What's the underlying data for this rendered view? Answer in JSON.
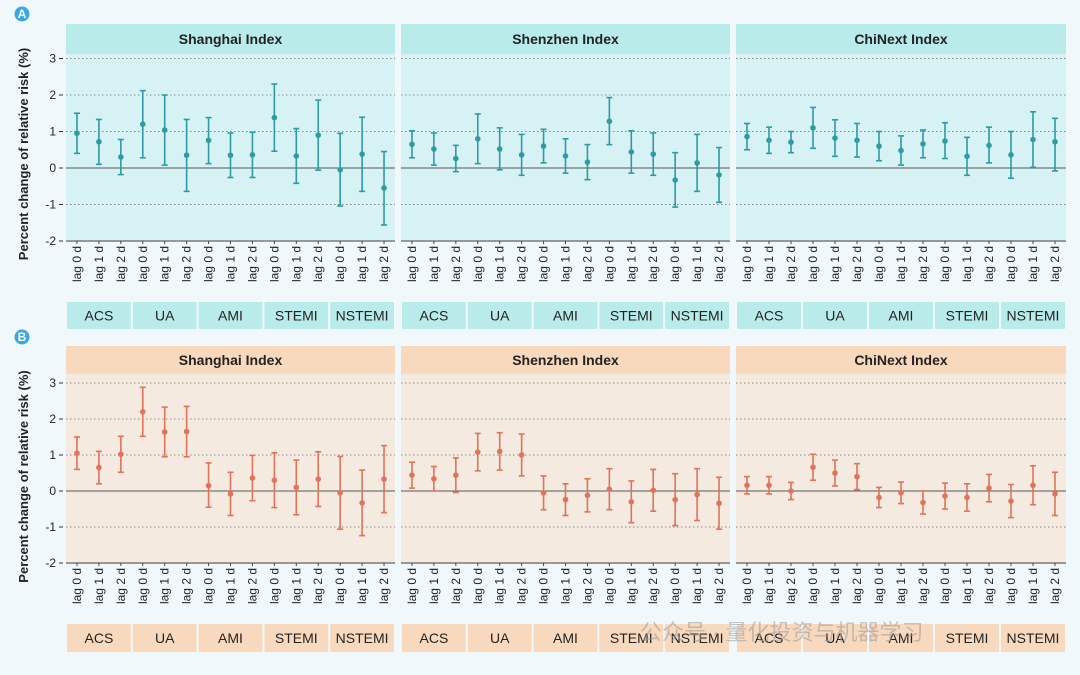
{
  "chart_data": [
    {
      "type": "errorbar",
      "label": "A",
      "ylabel": "Percent change of relative risk (%)",
      "ylim": [
        -2,
        3
      ],
      "yticks": [
        -2,
        -1,
        0,
        1,
        2,
        3
      ],
      "color": "#2e9aa3",
      "panel_bg": "#b9ebea",
      "panels": [
        {
          "title": "Shanghai Index",
          "groups": [
            "ACS",
            "UA",
            "AMI",
            "STEMI",
            "NSTEMI"
          ],
          "lags": [
            "lag 0 d",
            "lag 1 d",
            "lag 2 d"
          ],
          "points": [
            {
              "est": 0.95,
              "lo": 0.4,
              "hi": 1.5
            },
            {
              "est": 0.72,
              "lo": 0.1,
              "hi": 1.33
            },
            {
              "est": 0.3,
              "lo": -0.18,
              "hi": 0.78
            },
            {
              "est": 1.2,
              "lo": 0.28,
              "hi": 2.12
            },
            {
              "est": 1.04,
              "lo": 0.08,
              "hi": 2.0
            },
            {
              "est": 0.35,
              "lo": -0.64,
              "hi": 1.33
            },
            {
              "est": 0.76,
              "lo": 0.12,
              "hi": 1.38
            },
            {
              "est": 0.35,
              "lo": -0.26,
              "hi": 0.96
            },
            {
              "est": 0.36,
              "lo": -0.26,
              "hi": 0.98
            },
            {
              "est": 1.38,
              "lo": 0.46,
              "hi": 2.3
            },
            {
              "est": 0.33,
              "lo": -0.42,
              "hi": 1.08
            },
            {
              "est": 0.9,
              "lo": -0.06,
              "hi": 1.86
            },
            {
              "est": -0.05,
              "lo": -1.04,
              "hi": 0.95
            },
            {
              "est": 0.38,
              "lo": -0.64,
              "hi": 1.39
            },
            {
              "est": -0.55,
              "lo": -1.56,
              "hi": 0.45
            }
          ]
        },
        {
          "title": "Shenzhen Index",
          "groups": [
            "ACS",
            "UA",
            "AMI",
            "STEMI",
            "NSTEMI"
          ],
          "lags": [
            "lag 0 d",
            "lag 1 d",
            "lag 2 d"
          ],
          "points": [
            {
              "est": 0.65,
              "lo": 0.28,
              "hi": 1.02
            },
            {
              "est": 0.52,
              "lo": 0.08,
              "hi": 0.96
            },
            {
              "est": 0.26,
              "lo": -0.1,
              "hi": 0.62
            },
            {
              "est": 0.8,
              "lo": 0.12,
              "hi": 1.48
            },
            {
              "est": 0.52,
              "lo": -0.05,
              "hi": 1.1
            },
            {
              "est": 0.36,
              "lo": -0.2,
              "hi": 0.92
            },
            {
              "est": 0.6,
              "lo": 0.14,
              "hi": 1.06
            },
            {
              "est": 0.33,
              "lo": -0.14,
              "hi": 0.8
            },
            {
              "est": 0.16,
              "lo": -0.32,
              "hi": 0.64
            },
            {
              "est": 1.28,
              "lo": 0.64,
              "hi": 1.93
            },
            {
              "est": 0.44,
              "lo": -0.14,
              "hi": 1.02
            },
            {
              "est": 0.38,
              "lo": -0.2,
              "hi": 0.96
            },
            {
              "est": -0.33,
              "lo": -1.07,
              "hi": 0.42
            },
            {
              "est": 0.14,
              "lo": -0.64,
              "hi": 0.92
            },
            {
              "est": -0.19,
              "lo": -0.94,
              "hi": 0.56
            }
          ]
        },
        {
          "title": "ChiNext Index",
          "groups": [
            "ACS",
            "UA",
            "AMI",
            "STEMI",
            "NSTEMI"
          ],
          "lags": [
            "lag 0 d",
            "lag 1 d",
            "lag 2 d"
          ],
          "points": [
            {
              "est": 0.86,
              "lo": 0.5,
              "hi": 1.22
            },
            {
              "est": 0.76,
              "lo": 0.4,
              "hi": 1.12
            },
            {
              "est": 0.71,
              "lo": 0.42,
              "hi": 1.0
            },
            {
              "est": 1.1,
              "lo": 0.54,
              "hi": 1.66
            },
            {
              "est": 0.82,
              "lo": 0.32,
              "hi": 1.32
            },
            {
              "est": 0.76,
              "lo": 0.3,
              "hi": 1.22
            },
            {
              "est": 0.6,
              "lo": 0.2,
              "hi": 1.0
            },
            {
              "est": 0.48,
              "lo": 0.08,
              "hi": 0.88
            },
            {
              "est": 0.66,
              "lo": 0.28,
              "hi": 1.04
            },
            {
              "est": 0.74,
              "lo": 0.26,
              "hi": 1.24
            },
            {
              "est": 0.32,
              "lo": -0.2,
              "hi": 0.84
            },
            {
              "est": 0.62,
              "lo": 0.14,
              "hi": 1.12
            },
            {
              "est": 0.36,
              "lo": -0.28,
              "hi": 1.0
            },
            {
              "est": 0.78,
              "lo": 0.02,
              "hi": 1.54
            },
            {
              "est": 0.72,
              "lo": -0.08,
              "hi": 1.36
            }
          ]
        }
      ]
    },
    {
      "type": "errorbar",
      "label": "B",
      "ylabel": "Percent change of relative risk (%)",
      "ylim": [
        -2,
        3
      ],
      "yticks": [
        -2,
        -1,
        0,
        1,
        2,
        3
      ],
      "color": "#e0735a",
      "panel_bg": "#f9d9bd",
      "panels": [
        {
          "title": "Shanghai Index",
          "groups": [
            "ACS",
            "UA",
            "AMI",
            "STEMI",
            "NSTEMI"
          ],
          "lags": [
            "lag 0 d",
            "lag 1 d",
            "lag 2 d"
          ],
          "points": [
            {
              "est": 1.05,
              "lo": 0.6,
              "hi": 1.5
            },
            {
              "est": 0.65,
              "lo": 0.2,
              "hi": 1.1
            },
            {
              "est": 1.02,
              "lo": 0.52,
              "hi": 1.52
            },
            {
              "est": 2.2,
              "lo": 1.52,
              "hi": 2.88
            },
            {
              "est": 1.64,
              "lo": 0.95,
              "hi": 2.33
            },
            {
              "est": 1.65,
              "lo": 0.95,
              "hi": 2.35
            },
            {
              "est": 0.15,
              "lo": -0.45,
              "hi": 0.78
            },
            {
              "est": -0.08,
              "lo": -0.68,
              "hi": 0.52
            },
            {
              "est": 0.36,
              "lo": -0.27,
              "hi": 0.99
            },
            {
              "est": 0.3,
              "lo": -0.46,
              "hi": 1.06
            },
            {
              "est": 0.1,
              "lo": -0.66,
              "hi": 0.86
            },
            {
              "est": 0.33,
              "lo": -0.43,
              "hi": 1.09
            },
            {
              "est": -0.05,
              "lo": -1.06,
              "hi": 0.96
            },
            {
              "est": -0.33,
              "lo": -1.24,
              "hi": 0.58
            },
            {
              "est": 0.33,
              "lo": -0.6,
              "hi": 1.26
            }
          ]
        },
        {
          "title": "Shenzhen Index",
          "groups": [
            "ACS",
            "UA",
            "AMI",
            "STEMI",
            "NSTEMI"
          ],
          "lags": [
            "lag 0 d",
            "lag 1 d",
            "lag 2 d"
          ],
          "points": [
            {
              "est": 0.44,
              "lo": 0.08,
              "hi": 0.8
            },
            {
              "est": 0.34,
              "lo": 0.0,
              "hi": 0.68
            },
            {
              "est": 0.44,
              "lo": -0.04,
              "hi": 0.92
            },
            {
              "est": 1.08,
              "lo": 0.56,
              "hi": 1.6
            },
            {
              "est": 1.1,
              "lo": 0.58,
              "hi": 1.62
            },
            {
              "est": 1.0,
              "lo": 0.42,
              "hi": 1.58
            },
            {
              "est": -0.05,
              "lo": -0.52,
              "hi": 0.42
            },
            {
              "est": -0.24,
              "lo": -0.68,
              "hi": 0.2
            },
            {
              "est": -0.12,
              "lo": -0.58,
              "hi": 0.34
            },
            {
              "est": 0.05,
              "lo": -0.52,
              "hi": 0.62
            },
            {
              "est": -0.3,
              "lo": -0.88,
              "hi": 0.28
            },
            {
              "est": 0.02,
              "lo": -0.56,
              "hi": 0.6
            },
            {
              "est": -0.24,
              "lo": -0.96,
              "hi": 0.48
            },
            {
              "est": -0.1,
              "lo": -0.82,
              "hi": 0.62
            },
            {
              "est": -0.34,
              "lo": -1.06,
              "hi": 0.38
            }
          ]
        },
        {
          "title": "ChiNext Index",
          "groups": [
            "ACS",
            "UA",
            "AMI",
            "STEMI",
            "NSTEMI"
          ],
          "lags": [
            "lag 0 d",
            "lag 1 d",
            "lag 2 d"
          ],
          "points": [
            {
              "est": 0.16,
              "lo": -0.08,
              "hi": 0.4
            },
            {
              "est": 0.16,
              "lo": -0.08,
              "hi": 0.4
            },
            {
              "est": 0.0,
              "lo": -0.24,
              "hi": 0.24
            },
            {
              "est": 0.66,
              "lo": 0.3,
              "hi": 1.02
            },
            {
              "est": 0.5,
              "lo": 0.14,
              "hi": 0.86
            },
            {
              "est": 0.4,
              "lo": 0.04,
              "hi": 0.76
            },
            {
              "est": -0.18,
              "lo": -0.46,
              "hi": 0.1
            },
            {
              "est": -0.05,
              "lo": -0.35,
              "hi": 0.25
            },
            {
              "est": -0.32,
              "lo": -0.64,
              "hi": 0.0
            },
            {
              "est": -0.14,
              "lo": -0.5,
              "hi": 0.22
            },
            {
              "est": -0.18,
              "lo": -0.56,
              "hi": 0.2
            },
            {
              "est": 0.08,
              "lo": -0.3,
              "hi": 0.46
            },
            {
              "est": -0.28,
              "lo": -0.74,
              "hi": 0.18
            },
            {
              "est": 0.16,
              "lo": -0.38,
              "hi": 0.7
            },
            {
              "est": -0.08,
              "lo": -0.68,
              "hi": 0.52
            }
          ]
        }
      ]
    }
  ],
  "watermark": "公众号 · 量化投资与机器学习"
}
